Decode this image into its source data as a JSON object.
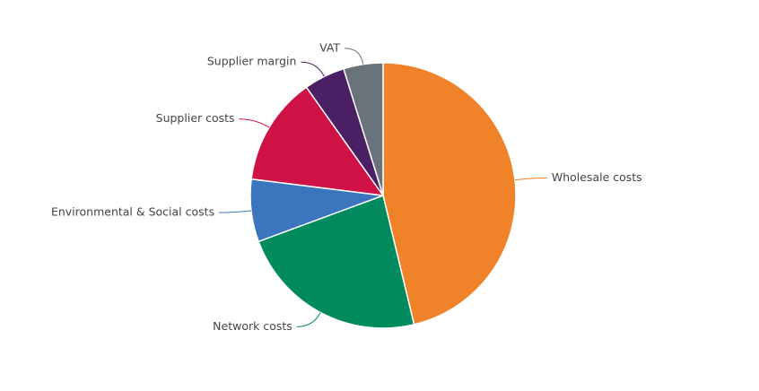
{
  "chart_data": {
    "type": "pie",
    "categories": [
      "Wholesale costs",
      "Network costs",
      "Environmental & Social costs",
      "Supplier costs",
      "Supplier margin",
      "VAT"
    ],
    "values": [
      46.2,
      23.1,
      7.6,
      13.2,
      5.0,
      4.8
    ],
    "colors": [
      "#f0822a",
      "#008a5e",
      "#3a75be",
      "#d01145",
      "#4a1f63",
      "#6a737b"
    ]
  }
}
